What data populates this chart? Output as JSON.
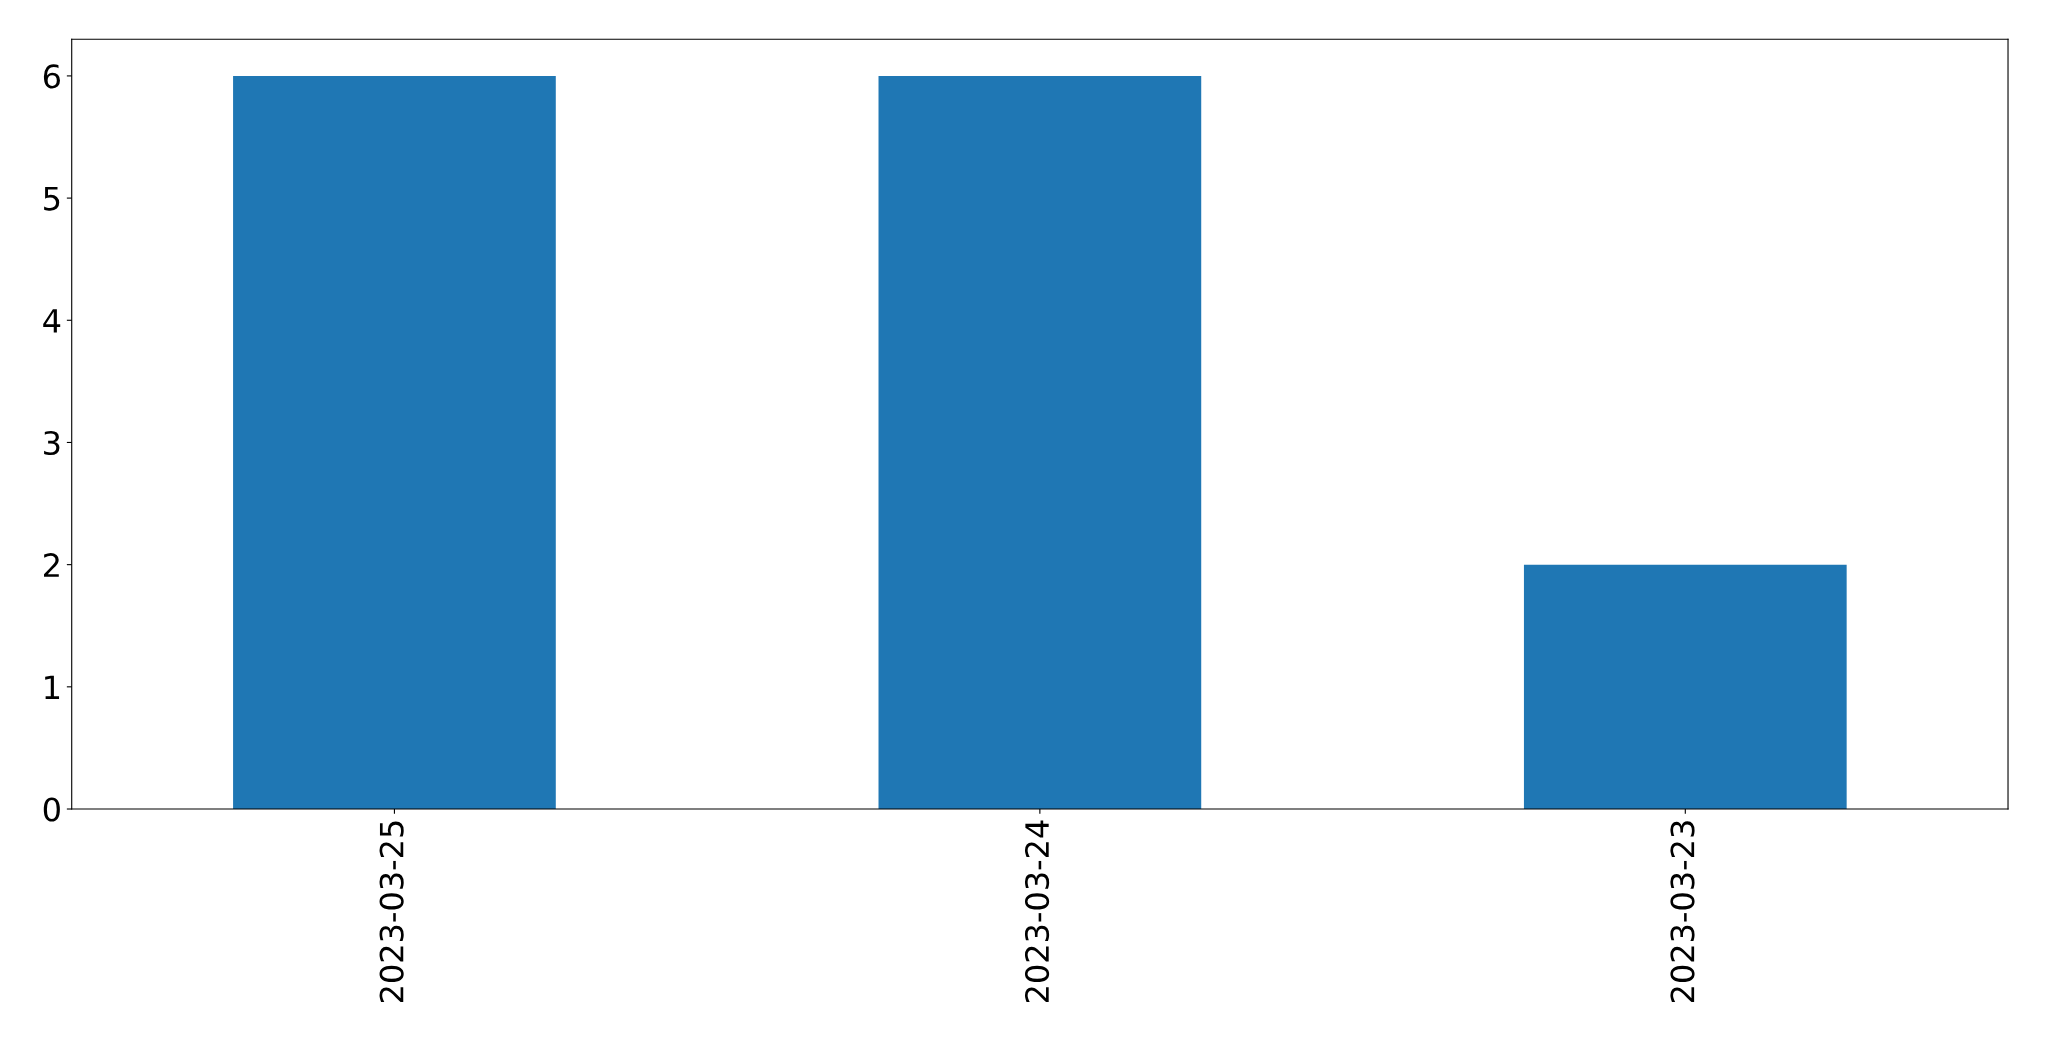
{
  "chart_data": {
    "type": "bar",
    "categories": [
      "2023-03-25",
      "2023-03-24",
      "2023-03-23"
    ],
    "values": [
      6,
      6,
      2
    ],
    "color": "#1f77b4",
    "ylim": [
      0,
      6.3
    ],
    "yticks": [
      0,
      1,
      2,
      3,
      4,
      5,
      6
    ],
    "grid": false
  }
}
